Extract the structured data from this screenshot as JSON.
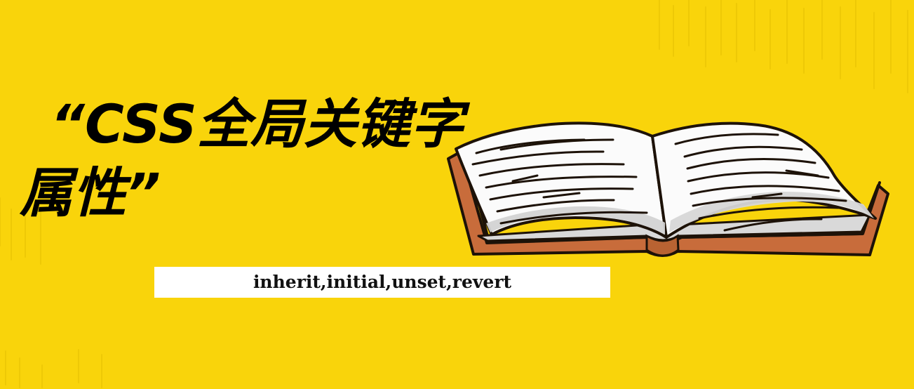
{
  "title": {
    "line1": "“CSS全局关键字",
    "line2": "属性”"
  },
  "subtitle": "inherit,initial,unset,revert",
  "colors": {
    "background": "#f9d40b",
    "title": "#000000",
    "subtitle_background": "#ffffff",
    "book_cover": "#c86c3b",
    "book_outline": "#1d1208",
    "page_shadow": "#dddddd"
  },
  "illustration": {
    "type": "open-book-icon"
  }
}
